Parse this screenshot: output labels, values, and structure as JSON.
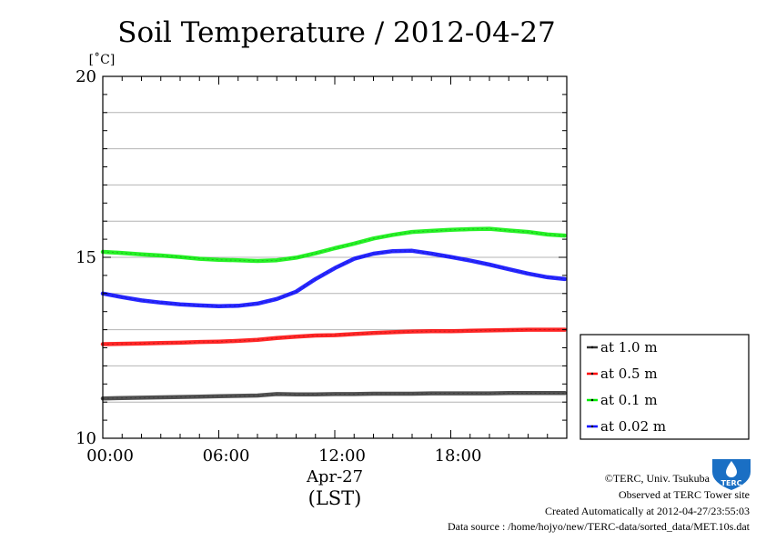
{
  "chart_data": {
    "type": "line",
    "title": "Soil Temperature / 2012-04-27",
    "ylabel": "[˚C]",
    "ylim": [
      10,
      20
    ],
    "yticks": [
      "10",
      "15",
      "20"
    ],
    "xlim": [
      0,
      24
    ],
    "xticks": [
      "00:00",
      "06:00",
      "12:00",
      "18:00"
    ],
    "xlabel_date": "Apr-27",
    "xlabel_tz": "(LST)",
    "grid": true,
    "legend_position": "right-bottom-outside",
    "x": [
      0,
      1,
      2,
      3,
      4,
      5,
      6,
      7,
      8,
      9,
      10,
      11,
      12,
      13,
      14,
      15,
      16,
      17,
      18,
      19,
      20,
      21,
      22,
      23,
      23.9
    ],
    "series": [
      {
        "name": "at 1.0 m",
        "color": "#333333",
        "values": [
          11.1,
          11.11,
          11.12,
          11.13,
          11.14,
          11.15,
          11.16,
          11.17,
          11.18,
          11.22,
          11.21,
          11.21,
          11.22,
          11.22,
          11.23,
          11.23,
          11.23,
          11.24,
          11.24,
          11.24,
          11.24,
          11.25,
          11.25,
          11.25,
          11.25
        ]
      },
      {
        "name": "at 0.5 m",
        "color": "#ff0000",
        "values": [
          12.6,
          12.61,
          12.62,
          12.63,
          12.64,
          12.66,
          12.67,
          12.69,
          12.72,
          12.77,
          12.81,
          12.84,
          12.85,
          12.88,
          12.91,
          12.93,
          12.95,
          12.96,
          12.96,
          12.97,
          12.98,
          12.99,
          13.0,
          13.0,
          13.0
        ]
      },
      {
        "name": "at 0.1 m",
        "color": "#00ee00",
        "values": [
          15.15,
          15.12,
          15.08,
          15.05,
          15.01,
          14.96,
          14.93,
          14.92,
          14.9,
          14.92,
          14.99,
          15.11,
          15.25,
          15.38,
          15.52,
          15.62,
          15.7,
          15.73,
          15.76,
          15.78,
          15.79,
          15.74,
          15.7,
          15.63,
          15.6
        ]
      },
      {
        "name": "at 0.02 m",
        "color": "#0000ff",
        "values": [
          14.0,
          13.9,
          13.81,
          13.75,
          13.7,
          13.67,
          13.65,
          13.66,
          13.72,
          13.85,
          14.05,
          14.4,
          14.7,
          14.96,
          15.1,
          15.17,
          15.18,
          15.1,
          15.01,
          14.91,
          14.8,
          14.67,
          14.55,
          14.45,
          14.4
        ]
      }
    ]
  },
  "credits": {
    "copyright": "©TERC, Univ. Tsukuba",
    "observed": "Observed at TERC Tower site",
    "created": "Created Automatically at 2012-04-27/23:55:03",
    "source": "Data source : /home/hojyo/new/TERC-data/sorted_data/MET.10s.dat",
    "logo_text": "TERC",
    "logo_color": "#1a6fc4"
  }
}
